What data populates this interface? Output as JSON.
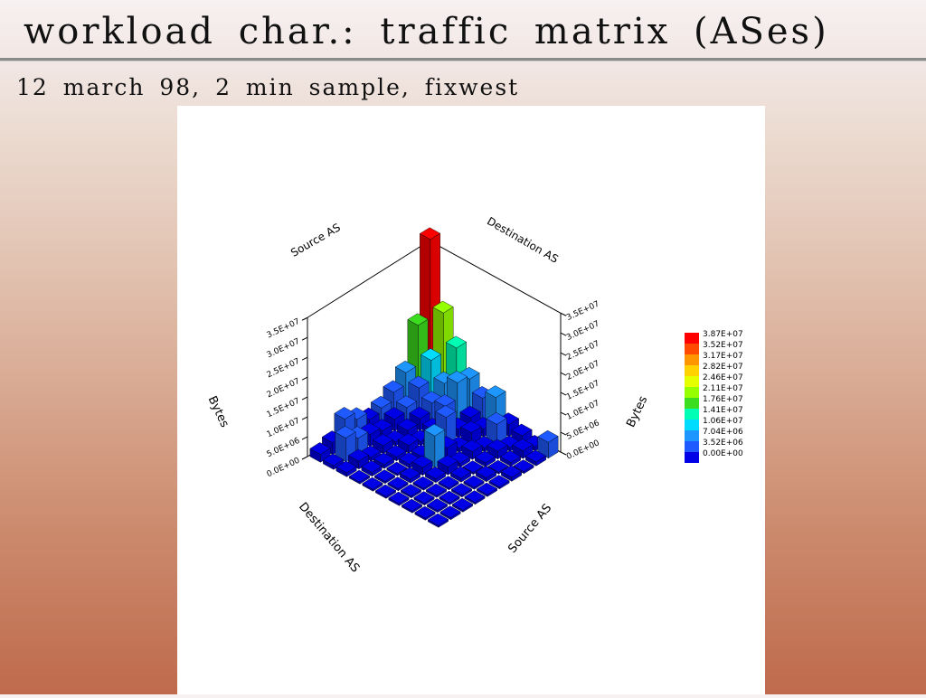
{
  "slide": {
    "title": "workload char.: traffic matrix (ASes)",
    "subtitle": "12 march 98, 2 min sample, fixwest"
  },
  "figure": {
    "z_axis_title": "Bytes",
    "source_axis_title": "Source AS",
    "destination_axis_title": "Destination AS",
    "zticks": [
      {
        "value": 0,
        "label": "0.0E+00"
      },
      {
        "value": 5000000,
        "label": "5.0E+06"
      },
      {
        "value": 10000000,
        "label": "1.0E+07"
      },
      {
        "value": 15000000,
        "label": "1.5E+07"
      },
      {
        "value": 20000000,
        "label": "2.0E+07"
      },
      {
        "value": 25000000,
        "label": "2.5E+07"
      },
      {
        "value": 30000000,
        "label": "3.0E+07"
      },
      {
        "value": 35000000,
        "label": "3.5E+07"
      }
    ],
    "colorbar": [
      {
        "value": 38700000,
        "label": "3.87E+07"
      },
      {
        "value": 35200000,
        "label": "3.52E+07"
      },
      {
        "value": 31700000,
        "label": "3.17E+07"
      },
      {
        "value": 28200000,
        "label": "2.82E+07"
      },
      {
        "value": 24600000,
        "label": "2.46E+07"
      },
      {
        "value": 21100000,
        "label": "2.11E+07"
      },
      {
        "value": 17600000,
        "label": "1.76E+07"
      },
      {
        "value": 14100000,
        "label": "1.41E+07"
      },
      {
        "value": 10600000,
        "label": "1.06E+07"
      },
      {
        "value": 7040000,
        "label": "7.04E+06"
      },
      {
        "value": 3520000,
        "label": "3.52E+06"
      },
      {
        "value": 0,
        "label": "0.00E+00"
      }
    ],
    "colors": [
      "#ff0000",
      "#ff4a00",
      "#ff9600",
      "#ffd200",
      "#e6ff00",
      "#96ff00",
      "#3cdc1e",
      "#00ffb4",
      "#00dcff",
      "#1e96ff",
      "#1e5aff",
      "#0000e6"
    ],
    "matrix": [
      [
        38700000,
        22000000,
        15000000,
        9000000,
        6000000,
        8000000,
        3000000,
        2000000,
        1000000,
        4000000
      ],
      [
        19000000,
        12000000,
        8000000,
        10000000,
        3000000,
        2000000,
        5000000,
        1000000,
        2000000,
        1000000
      ],
      [
        9000000,
        7000000,
        5000000,
        6000000,
        2000000,
        3000000,
        1000000,
        2000000,
        1000000,
        500000
      ],
      [
        6000000,
        4000000,
        3000000,
        2000000,
        7000000,
        1000000,
        2000000,
        1000000,
        500000,
        1000000
      ],
      [
        4000000,
        3000000,
        2000000,
        1000000,
        2000000,
        3000000,
        1000000,
        500000,
        1000000,
        500000
      ],
      [
        3000000,
        2000000,
        1000000,
        2000000,
        1000000,
        8000000,
        2000000,
        1000000,
        500000,
        500000
      ],
      [
        5000000,
        3000000,
        2000000,
        1000000,
        1000000,
        2000000,
        1000000,
        500000,
        500000,
        500000
      ],
      [
        7000000,
        4000000,
        1000000,
        1000000,
        500000,
        1000000,
        500000,
        500000,
        500000,
        500000
      ],
      [
        3000000,
        6000000,
        2000000,
        1000000,
        500000,
        500000,
        500000,
        500000,
        500000,
        500000
      ],
      [
        2000000,
        1000000,
        1000000,
        500000,
        500000,
        500000,
        500000,
        500000,
        500000,
        500000
      ]
    ]
  }
}
